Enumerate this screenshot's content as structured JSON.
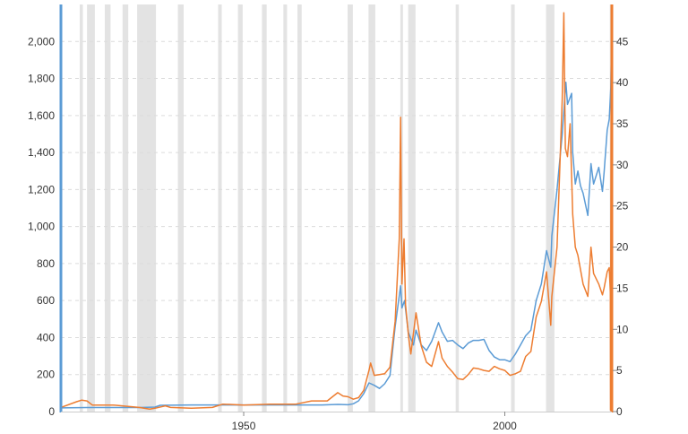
{
  "colors": {
    "gold": "#5b9bd5",
    "silver": "#ed7d31",
    "recession": "#e3e3e3",
    "grid": "#dcdcdc",
    "text": "#333333"
  },
  "chart_data": {
    "type": "line",
    "title": "",
    "xlabel": "",
    "ylabel_left": "",
    "ylabel_right": "",
    "grid": true,
    "legend": "none",
    "xlim": [
      1915,
      2020.5
    ],
    "ylim_left": [
      0,
      2200
    ],
    "ylim_right": [
      0,
      49.5
    ],
    "x_ticks": [
      1950,
      2000
    ],
    "y_ticks_left": [
      {
        "v": 0,
        "label": "0"
      },
      {
        "v": 200,
        "label": "200"
      },
      {
        "v": 400,
        "label": "400"
      },
      {
        "v": 600,
        "label": "600"
      },
      {
        "v": 800,
        "label": "800"
      },
      {
        "v": 1000,
        "label": "1,000"
      },
      {
        "v": 1200,
        "label": "1,200"
      },
      {
        "v": 1400,
        "label": "1,400"
      },
      {
        "v": 1600,
        "label": "1,600"
      },
      {
        "v": 1800,
        "label": "1,800"
      },
      {
        "v": 2000,
        "label": "2,000"
      }
    ],
    "y_ticks_right": [
      {
        "v": 0,
        "label": "0"
      },
      {
        "v": 5,
        "label": "5"
      },
      {
        "v": 10,
        "label": "10"
      },
      {
        "v": 15,
        "label": "15"
      },
      {
        "v": 20,
        "label": "20"
      },
      {
        "v": 25,
        "label": "25"
      },
      {
        "v": 30,
        "label": "30"
      },
      {
        "v": 35,
        "label": "35"
      },
      {
        "v": 40,
        "label": "40"
      },
      {
        "v": 45,
        "label": "45"
      }
    ],
    "recessions": [
      [
        1918.6,
        1919.2
      ],
      [
        1920.0,
        1921.5
      ],
      [
        1923.4,
        1924.5
      ],
      [
        1926.8,
        1927.9
      ],
      [
        1929.6,
        1933.2
      ],
      [
        1937.4,
        1938.5
      ],
      [
        1945.1,
        1945.8
      ],
      [
        1948.9,
        1949.8
      ],
      [
        1953.5,
        1954.4
      ],
      [
        1957.6,
        1958.3
      ],
      [
        1960.3,
        1961.1
      ],
      [
        1969.9,
        1970.9
      ],
      [
        1973.9,
        1975.2
      ],
      [
        1980.0,
        1980.5
      ],
      [
        1981.5,
        1982.9
      ],
      [
        1990.6,
        1991.2
      ],
      [
        2001.2,
        2001.9
      ],
      [
        2007.9,
        2009.5
      ],
      [
        2020.1,
        2020.4
      ]
    ],
    "series": [
      {
        "axis": "left",
        "points": [
          [
            1915,
            20
          ],
          [
            1920,
            22
          ],
          [
            1925,
            22
          ],
          [
            1930,
            22
          ],
          [
            1933,
            24
          ],
          [
            1934,
            34
          ],
          [
            1940,
            36
          ],
          [
            1945,
            36
          ],
          [
            1950,
            36
          ],
          [
            1955,
            36
          ],
          [
            1960,
            36
          ],
          [
            1965,
            36
          ],
          [
            1968,
            39
          ],
          [
            1970,
            37
          ],
          [
            1971,
            42
          ],
          [
            1972,
            58
          ],
          [
            1973,
            98
          ],
          [
            1974,
            155
          ],
          [
            1975,
            142
          ],
          [
            1976,
            125
          ],
          [
            1977,
            150
          ],
          [
            1978,
            195
          ],
          [
            1979,
            460
          ],
          [
            1980.05,
            680
          ],
          [
            1980.3,
            560
          ],
          [
            1980.8,
            600
          ],
          [
            1981.5,
            430
          ],
          [
            1982.5,
            360
          ],
          [
            1983,
            440
          ],
          [
            1984,
            360
          ],
          [
            1985,
            330
          ],
          [
            1986,
            380
          ],
          [
            1987.3,
            480
          ],
          [
            1988,
            430
          ],
          [
            1989,
            380
          ],
          [
            1990,
            385
          ],
          [
            1991,
            360
          ],
          [
            1992,
            340
          ],
          [
            1993,
            370
          ],
          [
            1994,
            385
          ],
          [
            1995,
            385
          ],
          [
            1996,
            390
          ],
          [
            1997,
            330
          ],
          [
            1998,
            295
          ],
          [
            1999,
            280
          ],
          [
            2000,
            280
          ],
          [
            2001,
            270
          ],
          [
            2002,
            310
          ],
          [
            2003,
            360
          ],
          [
            2004,
            410
          ],
          [
            2005,
            440
          ],
          [
            2006,
            600
          ],
          [
            2007,
            690
          ],
          [
            2008,
            870
          ],
          [
            2008.8,
            780
          ],
          [
            2009,
            950
          ],
          [
            2010,
            1200
          ],
          [
            2011,
            1500
          ],
          [
            2011.7,
            1780
          ],
          [
            2012,
            1660
          ],
          [
            2012.8,
            1720
          ],
          [
            2013,
            1400
          ],
          [
            2013.5,
            1230
          ],
          [
            2014,
            1300
          ],
          [
            2014.5,
            1220
          ],
          [
            2015,
            1180
          ],
          [
            2015.9,
            1060
          ],
          [
            2016.5,
            1340
          ],
          [
            2017,
            1230
          ],
          [
            2018,
            1320
          ],
          [
            2018.7,
            1190
          ],
          [
            2019,
            1290
          ],
          [
            2019.6,
            1520
          ],
          [
            2020,
            1580
          ],
          [
            2020.3,
            1750
          ],
          [
            2020.45,
            2000
          ]
        ]
      },
      {
        "axis": "right",
        "points": [
          [
            1915,
            0.5
          ],
          [
            1918,
            1.2
          ],
          [
            1919,
            1.4
          ],
          [
            1920,
            1.3
          ],
          [
            1921,
            0.8
          ],
          [
            1925,
            0.8
          ],
          [
            1930,
            0.5
          ],
          [
            1932,
            0.3
          ],
          [
            1933,
            0.4
          ],
          [
            1935,
            0.7
          ],
          [
            1936,
            0.5
          ],
          [
            1940,
            0.4
          ],
          [
            1944,
            0.5
          ],
          [
            1946,
            0.9
          ],
          [
            1950,
            0.8
          ],
          [
            1955,
            0.9
          ],
          [
            1960,
            0.9
          ],
          [
            1963,
            1.3
          ],
          [
            1966,
            1.3
          ],
          [
            1967,
            1.8
          ],
          [
            1968,
            2.3
          ],
          [
            1969,
            1.9
          ],
          [
            1970,
            1.8
          ],
          [
            1971,
            1.5
          ],
          [
            1972,
            1.7
          ],
          [
            1973,
            2.6
          ],
          [
            1974,
            5.0
          ],
          [
            1974.3,
            5.9
          ],
          [
            1975,
            4.4
          ],
          [
            1976,
            4.5
          ],
          [
            1977,
            4.6
          ],
          [
            1978,
            5.4
          ],
          [
            1979,
            11.0
          ],
          [
            1979.8,
            21.0
          ],
          [
            1980.05,
            35.8
          ],
          [
            1980.3,
            15.5
          ],
          [
            1980.7,
            21.0
          ],
          [
            1981,
            13.0
          ],
          [
            1981.6,
            9.0
          ],
          [
            1982,
            7.0
          ],
          [
            1983,
            12.0
          ],
          [
            1984,
            8.0
          ],
          [
            1985,
            6.0
          ],
          [
            1986,
            5.5
          ],
          [
            1987.3,
            8.5
          ],
          [
            1988,
            6.5
          ],
          [
            1989,
            5.5
          ],
          [
            1990,
            4.8
          ],
          [
            1991,
            4.0
          ],
          [
            1992,
            3.9
          ],
          [
            1993,
            4.5
          ],
          [
            1994,
            5.3
          ],
          [
            1995,
            5.2
          ],
          [
            1996,
            5.0
          ],
          [
            1997,
            4.9
          ],
          [
            1998,
            5.5
          ],
          [
            1999,
            5.2
          ],
          [
            2000,
            5.0
          ],
          [
            2001,
            4.4
          ],
          [
            2002,
            4.6
          ],
          [
            2003,
            4.9
          ],
          [
            2004,
            6.7
          ],
          [
            2005,
            7.3
          ],
          [
            2006,
            11.5
          ],
          [
            2007,
            13.4
          ],
          [
            2008,
            17.0
          ],
          [
            2008.8,
            10.5
          ],
          [
            2009,
            14.0
          ],
          [
            2010,
            20.0
          ],
          [
            2011,
            38.0
          ],
          [
            2011.3,
            48.5
          ],
          [
            2011.6,
            32.0
          ],
          [
            2012,
            31.0
          ],
          [
            2012.5,
            35.0
          ],
          [
            2013,
            24.0
          ],
          [
            2013.5,
            20.0
          ],
          [
            2014,
            19.0
          ],
          [
            2015,
            15.5
          ],
          [
            2015.9,
            14.0
          ],
          [
            2016.5,
            20.0
          ],
          [
            2017,
            16.8
          ],
          [
            2018,
            15.5
          ],
          [
            2018.7,
            14.2
          ],
          [
            2019,
            15.0
          ],
          [
            2019.6,
            17.0
          ],
          [
            2020,
            17.5
          ],
          [
            2020.2,
            14.5
          ],
          [
            2020.25,
            0.2
          ],
          [
            2020.32,
            28.0
          ],
          [
            2020.4,
            49.5
          ]
        ]
      }
    ]
  }
}
